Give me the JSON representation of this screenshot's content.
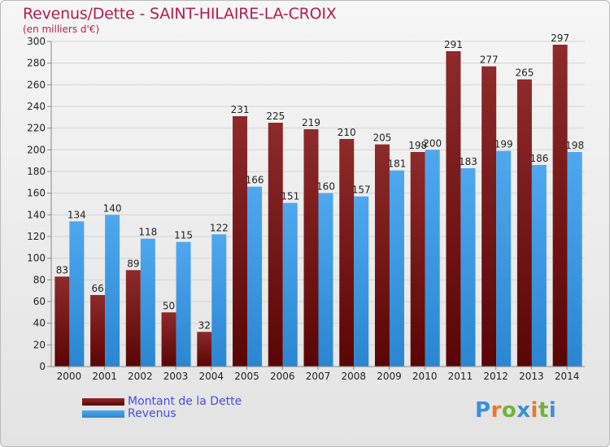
{
  "title": "Revenus/Dette - SAINT-HILAIRE-LA-CROIX",
  "subtitle": "(en milliers d'€)",
  "logo": {
    "text": "Proxiti",
    "letters": [
      "P",
      "r",
      "o",
      "x",
      "i",
      "t",
      "i"
    ],
    "colors": [
      "#3d8fd6",
      "#e8792a",
      "#72b33b",
      "#3d8fd6",
      "#e8792a",
      "#72b33b",
      "#3d8fd6"
    ]
  },
  "legend": [
    {
      "label": "Montant de la Dette",
      "color": "#7e1d1d"
    },
    {
      "label": "Revenus",
      "color": "#3d9be8"
    }
  ],
  "colors": {
    "dette": "#7e1d1d",
    "revenus": "#3d9be8",
    "text": "#222222",
    "title": "#b01e4f"
  },
  "chart_data": {
    "type": "bar",
    "categories": [
      "2000",
      "2001",
      "2002",
      "2003",
      "2004",
      "2005",
      "2006",
      "2007",
      "2008",
      "2009",
      "2010",
      "2011",
      "2012",
      "2013",
      "2014"
    ],
    "series": [
      {
        "name": "Montant de la Dette",
        "values": [
          83,
          66,
          89,
          50,
          32,
          231,
          225,
          219,
          210,
          205,
          198,
          291,
          277,
          265,
          297
        ]
      },
      {
        "name": "Revenus",
        "values": [
          134,
          140,
          118,
          115,
          122,
          166,
          151,
          160,
          157,
          181,
          200,
          183,
          199,
          186,
          198
        ]
      }
    ],
    "ylim": [
      0,
      300
    ],
    "yticks": [
      0,
      20,
      40,
      60,
      80,
      100,
      120,
      140,
      160,
      180,
      200,
      220,
      240,
      260,
      280,
      300
    ],
    "grid": true,
    "legend_position": "bottom-left"
  }
}
